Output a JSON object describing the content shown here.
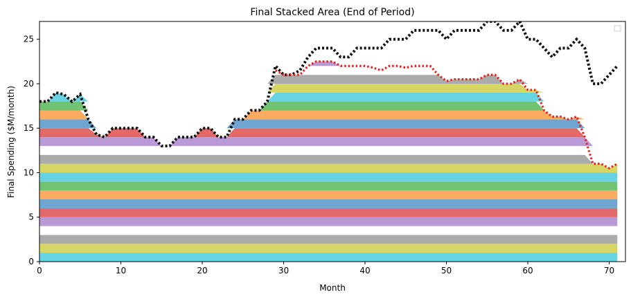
{
  "chart_data": {
    "type": "area",
    "title": "Final Stacked Area (End of Period)",
    "xlabel": "Month",
    "ylabel": "Final Spending ($M/month)",
    "xlim": [
      0,
      72
    ],
    "ylim": [
      0,
      27
    ],
    "xticks": [
      0,
      10,
      20,
      30,
      40,
      50,
      60,
      70
    ],
    "yticks": [
      0,
      5,
      10,
      15,
      20,
      25
    ],
    "legend": "top-right",
    "grid": false,
    "palette": [
      "#5fd1e1",
      "#d4d45f",
      "#a7a7a7",
      "#e89ed2",
      "#ffffff",
      "#b595d4",
      "#e06161",
      "#b68780",
      "#66a1cf",
      "#fba75a",
      "#69bf69",
      "#e06666"
    ],
    "layer_thickness": 1,
    "stacked_band_count": 40,
    "stacked_total": {
      "x": [
        0,
        1,
        2,
        3,
        4,
        5,
        6,
        7,
        8,
        9,
        10,
        11,
        12,
        13,
        14,
        15,
        16,
        17,
        18,
        19,
        20,
        21,
        22,
        23,
        24,
        25,
        26,
        27,
        28,
        29,
        30,
        31,
        32,
        33,
        34,
        35,
        36,
        37,
        38,
        39,
        40,
        41,
        42,
        43,
        44,
        45,
        46,
        47,
        48,
        49,
        50,
        51,
        52,
        53,
        54,
        55,
        56,
        57,
        58,
        59,
        60,
        61,
        62,
        63,
        64,
        65,
        66,
        67,
        68,
        69,
        70,
        71
      ],
      "values": [
        18,
        18,
        19,
        18.8,
        18,
        18.8,
        16,
        14.3,
        14,
        15,
        15,
        15,
        15,
        14,
        14,
        13,
        13,
        14,
        14,
        14,
        15,
        15,
        14,
        14,
        16,
        16,
        17,
        17,
        18,
        21.5,
        21,
        21,
        21,
        22,
        22.5,
        22.5,
        22.5,
        22,
        22,
        22,
        22,
        21.8,
        21.5,
        22,
        22,
        21.8,
        22,
        22,
        22,
        21,
        20.3,
        20.5,
        20.5,
        20.5,
        20.5,
        21,
        21,
        20,
        20,
        20.5,
        19.3,
        19.3,
        17,
        16.3,
        16.3,
        16,
        16.3,
        14,
        11,
        11,
        10.5,
        11
      ]
    },
    "series": [
      {
        "name": "",
        "style": "dotted",
        "color": "#111111",
        "x": [
          0,
          1,
          2,
          3,
          4,
          5,
          6,
          7,
          8,
          9,
          10,
          11,
          12,
          13,
          14,
          15,
          16,
          17,
          18,
          19,
          20,
          21,
          22,
          23,
          24,
          25,
          26,
          27,
          28,
          29,
          30,
          31,
          32,
          33,
          34,
          35,
          36,
          37,
          38,
          39,
          40,
          41,
          42,
          43,
          44,
          45,
          46,
          47,
          48,
          49,
          50,
          51,
          52,
          53,
          54,
          55,
          56,
          57,
          58,
          59,
          60,
          61,
          62,
          63,
          64,
          65,
          66,
          67,
          68,
          69,
          70,
          71
        ],
        "values": [
          18,
          18,
          19,
          18.8,
          18,
          18.8,
          16,
          14.3,
          14,
          15,
          15,
          15,
          15,
          14,
          14,
          13,
          13,
          14,
          14,
          14,
          15,
          15,
          14,
          14,
          16,
          16,
          17,
          17,
          18,
          22,
          21,
          21,
          21.5,
          23,
          24,
          24,
          24,
          23,
          23,
          24,
          24,
          24,
          24,
          25,
          25,
          25,
          26,
          26,
          26,
          26,
          25,
          26,
          26,
          26,
          26,
          27,
          27,
          26,
          26,
          27,
          25,
          25,
          24,
          23,
          24,
          24,
          25,
          24,
          20,
          20,
          21,
          22
        ]
      },
      {
        "name": "",
        "style": "dotted",
        "color": "#e8201e",
        "x": [
          29,
          30,
          31,
          32,
          33,
          34,
          35,
          36,
          37,
          38,
          39,
          40,
          41,
          42,
          43,
          44,
          45,
          46,
          47,
          48,
          49,
          50,
          51,
          52,
          53,
          54,
          55,
          56,
          57,
          58,
          59,
          60,
          61,
          62,
          63,
          64,
          65,
          66,
          67,
          68,
          69,
          70,
          71
        ],
        "values": [
          21.5,
          21,
          21,
          21,
          22,
          22.5,
          22.5,
          22.5,
          22,
          22,
          22,
          22,
          21.8,
          21.5,
          22,
          22,
          21.8,
          22,
          22,
          22,
          21,
          20.3,
          20.5,
          20.5,
          20.5,
          20.5,
          21,
          21,
          20,
          20,
          20.5,
          19.3,
          19.3,
          17,
          16.3,
          16.3,
          16,
          16.3,
          14,
          11,
          11,
          10.5,
          11
        ]
      }
    ]
  }
}
